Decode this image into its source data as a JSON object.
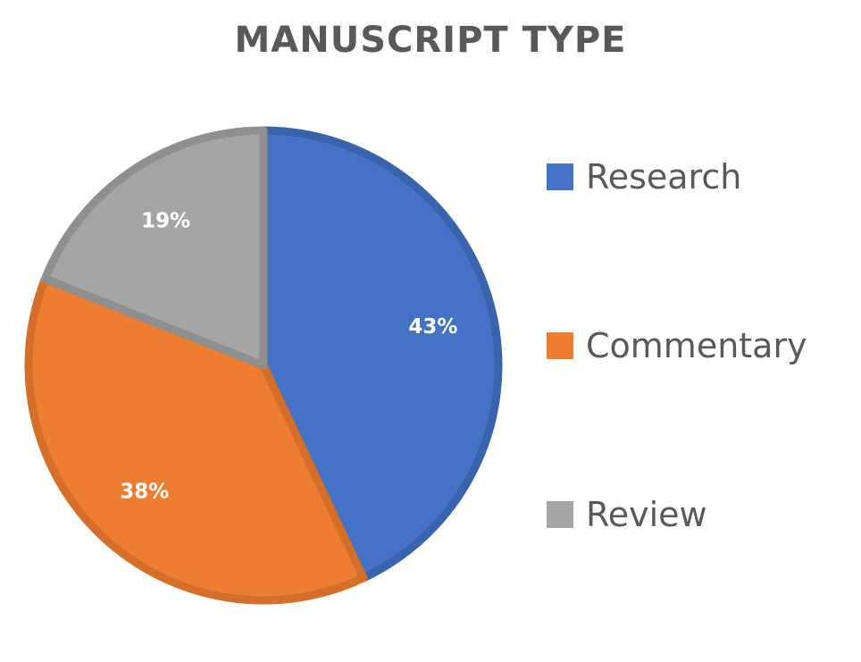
{
  "chart_data": {
    "type": "pie",
    "title": "MANUSCRIPT TYPE",
    "categories": [
      "Research",
      "Commentary",
      "Review"
    ],
    "values": [
      43,
      38,
      19
    ],
    "labels": [
      "43%",
      "38%",
      "19%"
    ],
    "colors": [
      "#4472C4",
      "#ED7D31",
      "#A5A5A5"
    ],
    "border_colors": [
      "#3A63AE",
      "#D56E28",
      "#8F8F8F"
    ],
    "legend_position": "right"
  }
}
